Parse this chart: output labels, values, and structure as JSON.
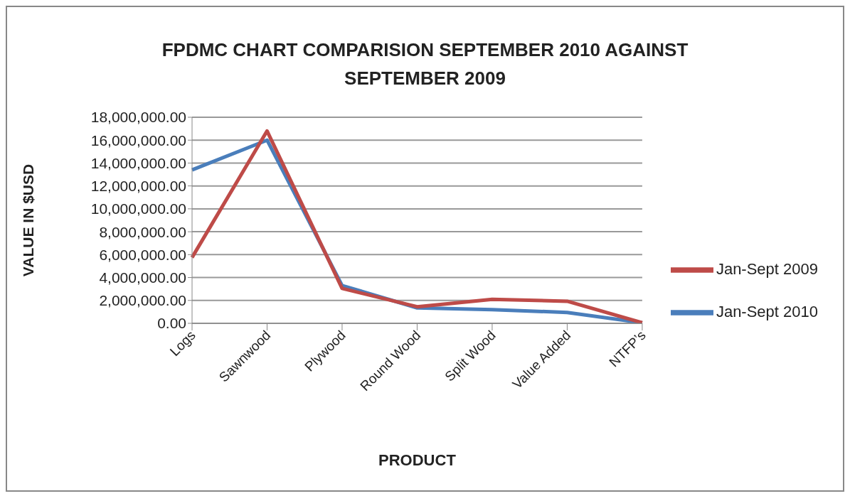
{
  "chart_data": {
    "type": "line",
    "title": "FPDMC CHART COMPARISION SEPTEMBER 2010 AGAINST SEPTEMBER   2009",
    "xlabel": "PRODUCT",
    "ylabel": "VALUE IN $USD",
    "categories": [
      "Logs",
      "Sawnwood",
      "Plywood",
      "Round Wood",
      "Split Wood",
      "Value Added",
      "NTFP’s"
    ],
    "series": [
      {
        "name": "Jan-Sept 2010",
        "color": "#4a7ebb",
        "values": [
          13400000,
          16000000,
          3300000,
          1350000,
          1200000,
          950000,
          50000
        ]
      },
      {
        "name": "Jan-Sept 2009",
        "color": "#be4b48",
        "values": [
          5750000,
          16800000,
          3050000,
          1450000,
          2100000,
          1930000,
          50000
        ]
      }
    ],
    "ylim": [
      0,
      18000000
    ],
    "yticks": [
      {
        "value": 0,
        "label": "0.00"
      },
      {
        "value": 2000000,
        "label": "2,000,000.00"
      },
      {
        "value": 4000000,
        "label": "4,000,000.00"
      },
      {
        "value": 6000000,
        "label": "6,000,000.00"
      },
      {
        "value": 8000000,
        "label": "8,000,000.00"
      },
      {
        "value": 10000000,
        "label": "10,000,000.00"
      },
      {
        "value": 12000000,
        "label": "12,000,000.00"
      },
      {
        "value": 14000000,
        "label": "14,000,000.00"
      },
      {
        "value": 16000000,
        "label": "16,000,000.00"
      },
      {
        "value": 18000000,
        "label": "18,000,000.00"
      }
    ],
    "grid": "y",
    "legend": "right",
    "marker": "none",
    "line_style": "solid"
  }
}
